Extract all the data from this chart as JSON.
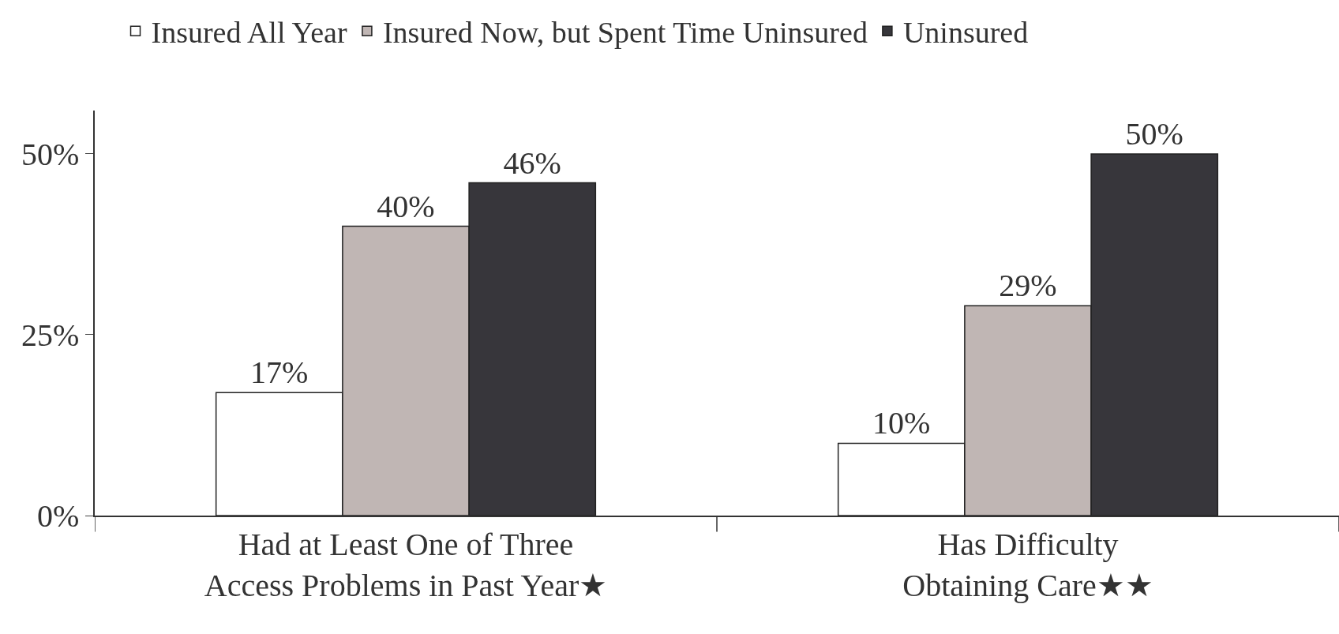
{
  "chart_data": {
    "type": "bar",
    "categories": [
      "Had at Least One of Three\nAccess Problems in Past Year★",
      "Has Difficulty\nObtaining Care★★"
    ],
    "series": [
      {
        "name": "Insured All Year",
        "color": "#ffffff",
        "values": [
          17,
          10
        ],
        "value_labels": [
          "17%",
          "10%"
        ]
      },
      {
        "name": "Insured Now, but Spent Time Uninsured",
        "color": "#c0b6b4",
        "values": [
          40,
          29
        ],
        "value_labels": [
          "40%",
          "29%"
        ]
      },
      {
        "name": "Uninsured",
        "color": "#37363b",
        "values": [
          46,
          50
        ],
        "value_labels": [
          "46%",
          "50%"
        ]
      }
    ],
    "ylim": [
      0,
      56
    ],
    "yticks": [
      {
        "value": 0,
        "label": "0%"
      },
      {
        "value": 25,
        "label": "25%"
      },
      {
        "value": 50,
        "label": "50%"
      }
    ],
    "legend": "top"
  }
}
